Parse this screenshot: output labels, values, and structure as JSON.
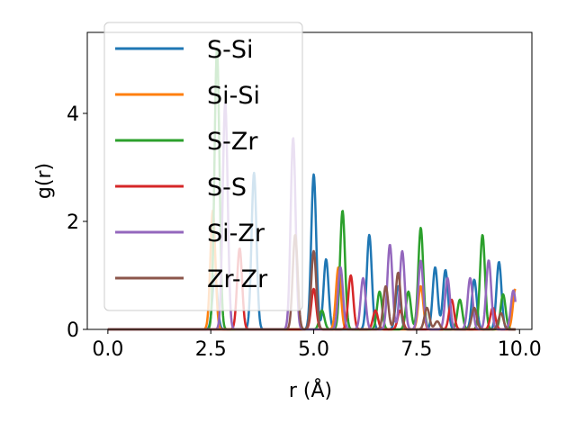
{
  "chart_data": {
    "type": "line",
    "title": "",
    "xlabel": "r (Å)",
    "ylabel": "g(r)",
    "xlim": [
      -0.5,
      10.3
    ],
    "ylim": [
      0,
      5.5
    ],
    "x_ticks": [
      0.0,
      2.5,
      5.0,
      7.5,
      10.0
    ],
    "x_tick_labels": [
      "0.0",
      "2.5",
      "5.0",
      "7.5",
      "10.0"
    ],
    "y_ticks": [
      0,
      2,
      4
    ],
    "y_tick_labels": [
      "0",
      "2",
      "4"
    ],
    "grid": false,
    "legend_position": "upper-left",
    "series": [
      {
        "name": "S-Si",
        "color": "#1f77b4",
        "peaks": [
          [
            2.6,
            1.0
          ],
          [
            3.55,
            2.9
          ],
          [
            5.0,
            2.87
          ],
          [
            5.3,
            1.3
          ],
          [
            6.35,
            1.75
          ],
          [
            7.05,
            0.8
          ],
          [
            7.95,
            1.15
          ],
          [
            8.2,
            1.1
          ],
          [
            8.9,
            0.92
          ],
          [
            9.5,
            1.25
          ]
        ]
      },
      {
        "name": "Si-Si",
        "color": "#ff7f0e",
        "peaks": [
          [
            2.55,
            2.2
          ],
          [
            5.6,
            1.15
          ],
          [
            7.6,
            0.8
          ],
          [
            9.9,
            0.75
          ]
        ]
      },
      {
        "name": "S-Zr",
        "color": "#2ca02c",
        "peaks": [
          [
            2.65,
            5.2
          ],
          [
            5.2,
            0.35
          ],
          [
            5.7,
            2.2
          ],
          [
            6.6,
            0.7
          ],
          [
            7.3,
            0.7
          ],
          [
            7.6,
            1.88
          ],
          [
            8.55,
            0.55
          ],
          [
            9.1,
            1.75
          ],
          [
            9.6,
            0.65
          ]
        ]
      },
      {
        "name": "S-S",
        "color": "#d62728",
        "peaks": [
          [
            3.2,
            1.5
          ],
          [
            5.0,
            0.75
          ],
          [
            5.9,
            1.0
          ],
          [
            6.5,
            0.35
          ],
          [
            7.1,
            0.35
          ],
          [
            8.35,
            0.55
          ],
          [
            9.35,
            0.4
          ]
        ]
      },
      {
        "name": "Si-Zr",
        "color": "#9467bd",
        "peaks": [
          [
            2.85,
            4.2
          ],
          [
            4.5,
            3.55
          ],
          [
            5.65,
            1.15
          ],
          [
            6.2,
            0.95
          ],
          [
            6.85,
            1.57
          ],
          [
            7.15,
            1.45
          ],
          [
            7.6,
            1.27
          ],
          [
            8.25,
            0.95
          ],
          [
            8.8,
            0.95
          ],
          [
            9.25,
            1.28
          ],
          [
            9.85,
            0.72
          ]
        ]
      },
      {
        "name": "Zr-Zr",
        "color": "#8c564b",
        "peaks": [
          [
            4.55,
            1.75
          ],
          [
            5.0,
            1.45
          ],
          [
            6.75,
            0.8
          ],
          [
            7.05,
            1.05
          ],
          [
            7.75,
            0.4
          ],
          [
            8.0,
            0.15
          ],
          [
            8.9,
            0.4
          ],
          [
            9.55,
            0.3
          ]
        ]
      }
    ]
  }
}
